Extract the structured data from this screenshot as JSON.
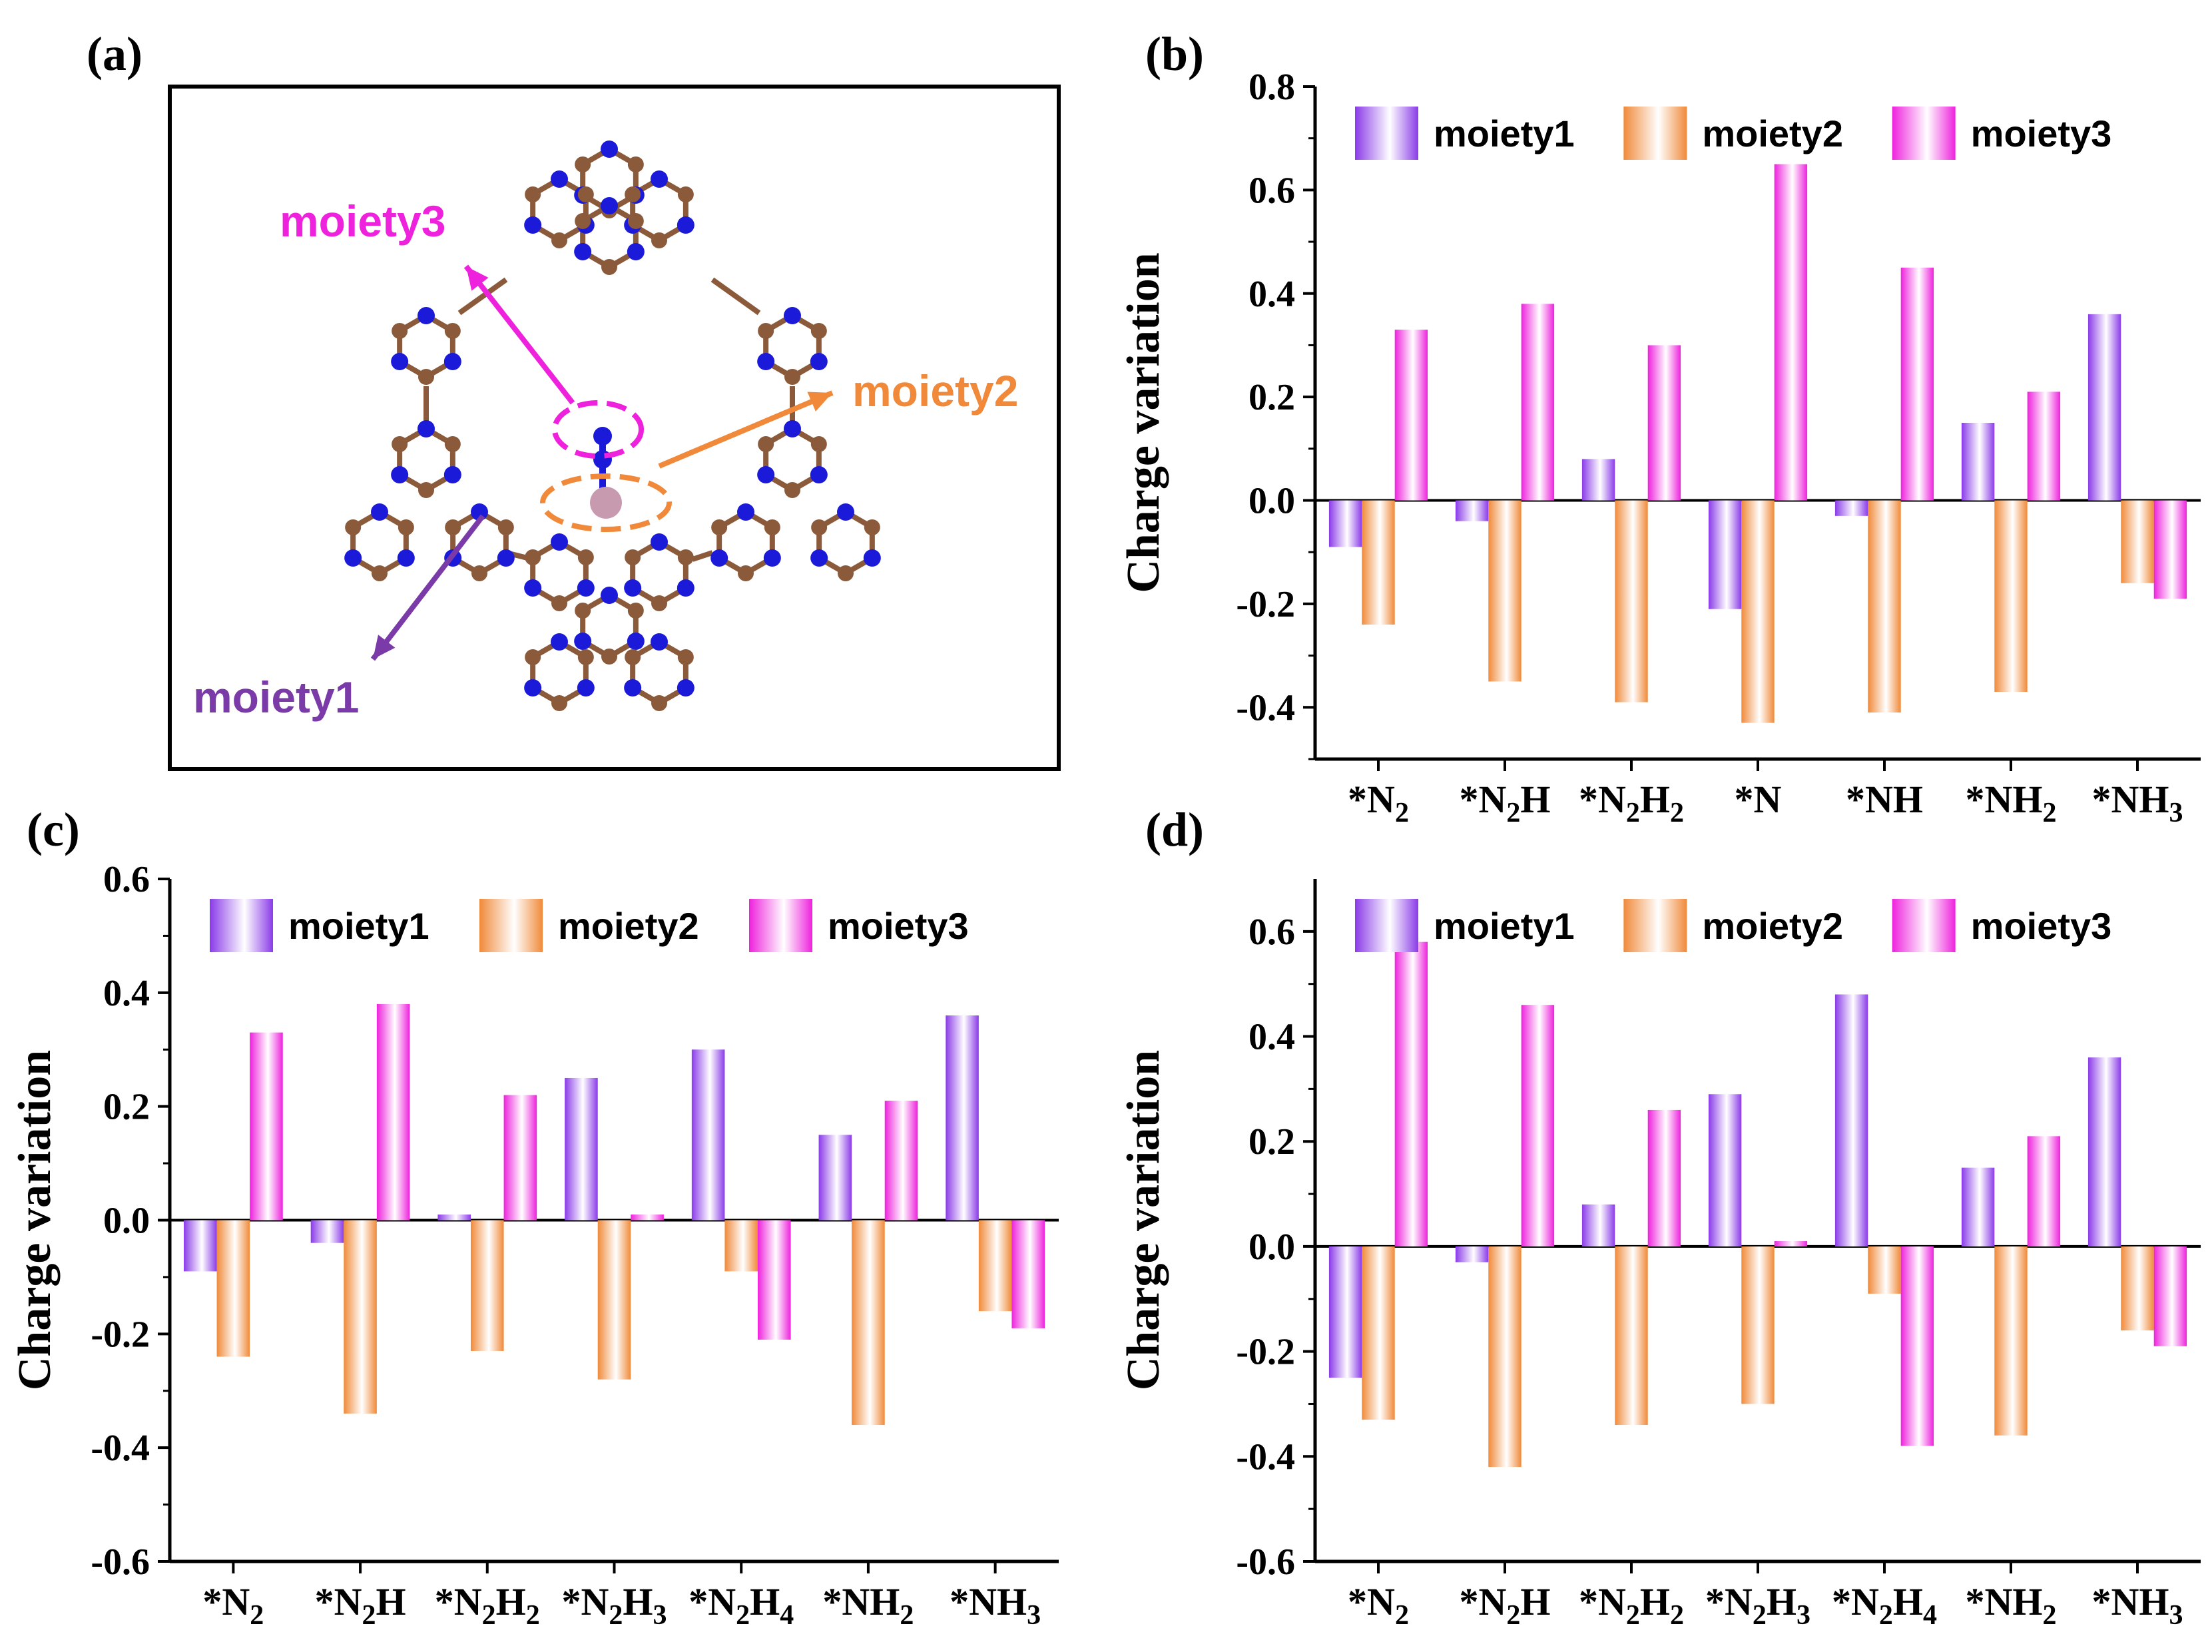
{
  "colors": {
    "moiety1": "#8a3be8",
    "moiety2": "#f08a3a",
    "moiety3": "#ee22dd",
    "carbon": "#8a5a3a",
    "nitrogen": "#1a1ad8",
    "metal": "#c89ab0",
    "moiety1_label": "#7a3aa8",
    "moiety2_label": "#f08a3a",
    "moiety3_label": "#ee22dd"
  },
  "panel_a": {
    "label": "(a)",
    "moiety1_label": "moiety1",
    "moiety2_label": "moiety2",
    "moiety3_label": "moiety3"
  },
  "chart_data": [
    {
      "id": "b",
      "label": "(b)",
      "type": "bar",
      "ylabel": "Charge variation",
      "ylim": [
        -0.5,
        0.8
      ],
      "yticks": [
        0.8,
        0.6,
        0.4,
        0.2,
        0.0,
        -0.2,
        -0.4
      ],
      "ytick_labels": [
        "0.8",
        "0.6",
        "0.4",
        "0.2",
        "0.0",
        "-0.2",
        "-0.4"
      ],
      "categories": [
        {
          "base": "*N",
          "sub": "2",
          "rest": ""
        },
        {
          "base": "*N",
          "sub": "2",
          "rest": "H"
        },
        {
          "base": "*N",
          "sub": "2",
          "rest": "H",
          "sub2": "2"
        },
        {
          "base": "*N",
          "sub": "",
          "rest": ""
        },
        {
          "base": "*NH",
          "sub": "",
          "rest": ""
        },
        {
          "base": "*NH",
          "sub": "2",
          "rest": ""
        },
        {
          "base": "*NH",
          "sub": "3",
          "rest": ""
        }
      ],
      "legend": [
        "moiety1",
        "moiety2",
        "moiety3"
      ],
      "series": [
        {
          "name": "moiety1",
          "values": [
            -0.09,
            -0.04,
            0.08,
            -0.21,
            -0.03,
            0.15,
            0.36
          ]
        },
        {
          "name": "moiety2",
          "values": [
            -0.24,
            -0.35,
            -0.39,
            -0.43,
            -0.41,
            -0.37,
            -0.16
          ]
        },
        {
          "name": "moiety3",
          "values": [
            0.33,
            0.38,
            0.3,
            0.65,
            0.45,
            0.21,
            -0.19
          ]
        }
      ]
    },
    {
      "id": "c",
      "label": "(c)",
      "type": "bar",
      "ylabel": "Charge variation",
      "ylim": [
        -0.6,
        0.6
      ],
      "yticks": [
        0.6,
        0.4,
        0.2,
        0.0,
        -0.2,
        -0.4,
        -0.6
      ],
      "ytick_labels": [
        "0.6",
        "0.4",
        "0.2",
        "0.0",
        "-0.2",
        "-0.4",
        "-0.6"
      ],
      "categories": [
        {
          "base": "*N",
          "sub": "2",
          "rest": ""
        },
        {
          "base": "*N",
          "sub": "2",
          "rest": "H"
        },
        {
          "base": "*N",
          "sub": "2",
          "rest": "H",
          "sub2": "2"
        },
        {
          "base": "*N",
          "sub": "2",
          "rest": "H",
          "sub2": "3"
        },
        {
          "base": "*N",
          "sub": "2",
          "rest": "H",
          "sub2": "4"
        },
        {
          "base": "*NH",
          "sub": "2",
          "rest": ""
        },
        {
          "base": "*NH",
          "sub": "3",
          "rest": ""
        }
      ],
      "legend": [
        "moiety1",
        "moiety2",
        "moiety3"
      ],
      "series": [
        {
          "name": "moiety1",
          "values": [
            -0.09,
            -0.04,
            0.01,
            0.25,
            0.3,
            0.15,
            0.36
          ]
        },
        {
          "name": "moiety2",
          "values": [
            -0.24,
            -0.34,
            -0.23,
            -0.28,
            -0.09,
            -0.36,
            -0.16
          ]
        },
        {
          "name": "moiety3",
          "values": [
            0.33,
            0.38,
            0.22,
            0.01,
            -0.21,
            0.21,
            -0.19
          ]
        }
      ]
    },
    {
      "id": "d",
      "label": "(d)",
      "type": "bar",
      "ylabel": "Charge variation",
      "ylim": [
        -0.6,
        0.7
      ],
      "yticks": [
        0.6,
        0.4,
        0.2,
        0.0,
        -0.2,
        -0.4,
        -0.6
      ],
      "ytick_labels": [
        "0.6",
        "0.4",
        "0.2",
        "0.0",
        "-0.2",
        "-0.4",
        "-0.6"
      ],
      "categories": [
        {
          "base": "*N",
          "sub": "2",
          "rest": ""
        },
        {
          "base": "*N",
          "sub": "2",
          "rest": "H"
        },
        {
          "base": "*N",
          "sub": "2",
          "rest": "H",
          "sub2": "2"
        },
        {
          "base": "*N",
          "sub": "2",
          "rest": "H",
          "sub2": "3"
        },
        {
          "base": "*N",
          "sub": "2",
          "rest": "H",
          "sub2": "4"
        },
        {
          "base": "*NH",
          "sub": "2",
          "rest": ""
        },
        {
          "base": "*NH",
          "sub": "3",
          "rest": ""
        }
      ],
      "legend": [
        "moiety1",
        "moiety2",
        "moiety3"
      ],
      "series": [
        {
          "name": "moiety1",
          "values": [
            -0.25,
            -0.03,
            0.08,
            0.29,
            0.48,
            0.15,
            0.36
          ]
        },
        {
          "name": "moiety2",
          "values": [
            -0.33,
            -0.42,
            -0.34,
            -0.3,
            -0.09,
            -0.36,
            -0.16
          ]
        },
        {
          "name": "moiety3",
          "values": [
            0.58,
            0.46,
            0.26,
            0.01,
            -0.38,
            0.21,
            -0.19
          ]
        }
      ]
    }
  ]
}
